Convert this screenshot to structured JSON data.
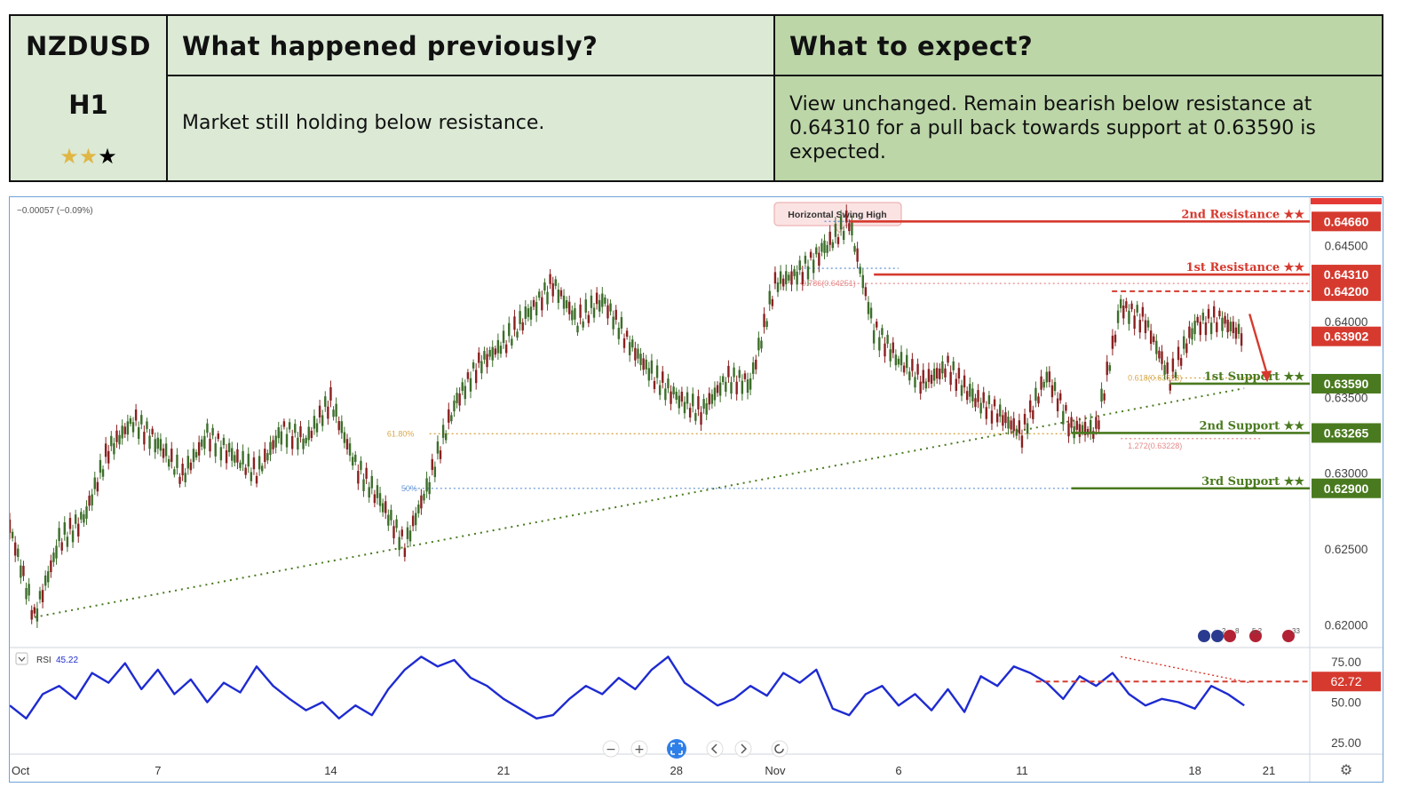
{
  "header": {
    "symbol": "NZDUSD",
    "timeframe": "H1",
    "stars": {
      "filled": 2,
      "total": 3
    },
    "prev_title": "What happened previously?",
    "prev_text": "Market still holding below resistance.",
    "exp_title": "What to expect?",
    "exp_text": "View unchanged. Remain bearish below resistance at 0.64310 for a pull back towards support at 0.63590 is expected."
  },
  "colors": {
    "header_left": "#dbe9d5",
    "header_right": "#bcd6a8",
    "resistance": "#d63a2f",
    "support": "#4a7a1f",
    "rsi": "#1e2bd1",
    "bull_candle": "#3c6e2a",
    "bear_candle": "#8a2020"
  },
  "icons": [
    "star-icon",
    "collapse-icon",
    "zoom-out-icon",
    "zoom-in-icon",
    "reset-zoom-icon",
    "scroll-left-icon",
    "scroll-right-icon",
    "replay-icon",
    "settings-icon",
    "flag-icons"
  ],
  "chart_data": {
    "type": "line",
    "instrument": "NZDUSD",
    "timeframe": "H1",
    "change_label": "−0.00057 (−0.09%)",
    "x_ticks": [
      "Oct",
      "7",
      "14",
      "21",
      "28",
      "Nov",
      "6",
      "11",
      "18",
      "21"
    ],
    "ylim": [
      0.6185,
      0.6482
    ],
    "y_ticks": [
      "0.64500",
      "0.64000",
      "0.63500",
      "0.63000",
      "0.62500",
      "0.62000"
    ],
    "price_path": [
      {
        "x": "Oct 1",
        "y": 0.6265
      },
      {
        "x": "Oct 2",
        "y": 0.6205
      },
      {
        "x": "Oct 3",
        "y": 0.6255
      },
      {
        "x": "Oct 4",
        "y": 0.627
      },
      {
        "x": "Oct 5",
        "y": 0.6315
      },
      {
        "x": "Oct 6",
        "y": 0.6335
      },
      {
        "x": "Oct 7",
        "y": 0.632
      },
      {
        "x": "Oct 8",
        "y": 0.6298
      },
      {
        "x": "Oct 9",
        "y": 0.6325
      },
      {
        "x": "Oct 10",
        "y": 0.6312
      },
      {
        "x": "Oct 11",
        "y": 0.63
      },
      {
        "x": "Oct 12",
        "y": 0.6328
      },
      {
        "x": "Oct 13",
        "y": 0.6322
      },
      {
        "x": "Oct 14",
        "y": 0.6348
      },
      {
        "x": "Oct 15",
        "y": 0.6305
      },
      {
        "x": "Oct 16",
        "y": 0.6282
      },
      {
        "x": "Oct 17",
        "y": 0.6252
      },
      {
        "x": "Oct 18",
        "y": 0.6295
      },
      {
        "x": "Oct 19",
        "y": 0.6345
      },
      {
        "x": "Oct 20",
        "y": 0.6372
      },
      {
        "x": "Oct 21",
        "y": 0.6385
      },
      {
        "x": "Oct 22",
        "y": 0.6405
      },
      {
        "x": "Oct 23",
        "y": 0.6425
      },
      {
        "x": "Oct 24",
        "y": 0.64
      },
      {
        "x": "Oct 25",
        "y": 0.6415
      },
      {
        "x": "Oct 26",
        "y": 0.6388
      },
      {
        "x": "Oct 27",
        "y": 0.6365
      },
      {
        "x": "Oct 28",
        "y": 0.635
      },
      {
        "x": "Oct 29",
        "y": 0.634
      },
      {
        "x": "Oct 30",
        "y": 0.6362
      },
      {
        "x": "Oct 31",
        "y": 0.636
      },
      {
        "x": "Nov 1",
        "y": 0.6425
      },
      {
        "x": "Nov 2",
        "y": 0.6432
      },
      {
        "x": "Nov 3",
        "y": 0.6448
      },
      {
        "x": "Nov 4",
        "y": 0.6466
      },
      {
        "x": "Nov 5",
        "y": 0.6395
      },
      {
        "x": "Nov 6",
        "y": 0.6375
      },
      {
        "x": "Nov 7",
        "y": 0.636
      },
      {
        "x": "Nov 8",
        "y": 0.637
      },
      {
        "x": "Nov 9",
        "y": 0.635
      },
      {
        "x": "Nov 10",
        "y": 0.634
      },
      {
        "x": "Nov 11",
        "y": 0.6326
      },
      {
        "x": "Nov 12",
        "y": 0.6365
      },
      {
        "x": "Nov 13",
        "y": 0.633
      },
      {
        "x": "Nov 14",
        "y": 0.6328
      },
      {
        "x": "Nov 15",
        "y": 0.641
      },
      {
        "x": "Nov 16",
        "y": 0.64
      },
      {
        "x": "Nov 17",
        "y": 0.6362
      },
      {
        "x": "Nov 18",
        "y": 0.6398
      },
      {
        "x": "Nov 19",
        "y": 0.6402
      },
      {
        "x": "Nov 20",
        "y": 0.639
      }
    ],
    "levels": [
      {
        "label": "2nd Resistance ★★",
        "value": 0.6466,
        "price_label": "0.64660",
        "kind": "resistance",
        "from": "Nov 4"
      },
      {
        "label": "1st Resistance ★★",
        "value": 0.6431,
        "price_label": "0.64310",
        "kind": "resistance",
        "from": "Nov 5"
      },
      {
        "label": "1st Support ★★",
        "value": 0.6359,
        "price_label": "0.63590",
        "kind": "support",
        "from": "Nov 17"
      },
      {
        "label": "2nd Support ★★",
        "value": 0.63265,
        "price_label": "0.63265",
        "kind": "support",
        "from": "Nov 13"
      },
      {
        "label": "3rd Support ★★",
        "value": 0.629,
        "price_label": "0.62900",
        "kind": "support",
        "from": "Nov 13"
      }
    ],
    "price_boxes": [
      {
        "value": 0.642,
        "label": "0.64200",
        "kind": "resistance"
      },
      {
        "value": 0.63902,
        "label": "0.63902",
        "kind": "current"
      }
    ],
    "fib_labels": [
      "61.80%",
      "50%",
      "0.786(0.64251)",
      "0.618(0.63628)",
      "1.272(0.63228)"
    ],
    "annotations": [
      "Horizontal Swing High"
    ],
    "trendline": {
      "from": {
        "x": "Oct 2",
        "y": 0.6205
      },
      "to": {
        "x": "Nov 20",
        "y": 0.6356
      }
    },
    "rsi": {
      "label": "RSI",
      "value": "45.22",
      "level_label": "62.72",
      "level": 62.72,
      "ylim": [
        18,
        82
      ],
      "y_ticks": [
        "75.00",
        "50.00",
        "25.00"
      ],
      "values": [
        48,
        40,
        55,
        60,
        52,
        68,
        62,
        74,
        58,
        70,
        55,
        64,
        50,
        62,
        56,
        72,
        60,
        52,
        45,
        50,
        40,
        48,
        42,
        58,
        70,
        78,
        72,
        76,
        65,
        60,
        52,
        46,
        40,
        42,
        52,
        60,
        55,
        65,
        58,
        70,
        78,
        62,
        55,
        48,
        52,
        60,
        54,
        68,
        62,
        70,
        46,
        42,
        55,
        60,
        48,
        55,
        45,
        58,
        44,
        66,
        60,
        72,
        68,
        62,
        52,
        66,
        60,
        68,
        55,
        48,
        52,
        50,
        46,
        60,
        55,
        48
      ]
    },
    "legend_marks": [
      "2",
      "8",
      "5 2",
      "33"
    ]
  }
}
